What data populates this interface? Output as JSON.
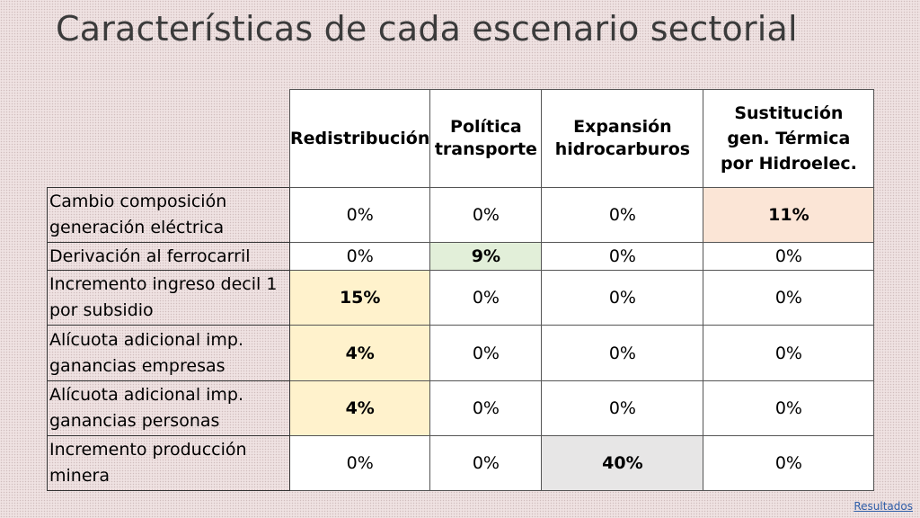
{
  "title": "Características de cada escenario sectorial",
  "columns": [
    "Redistribución",
    "Política transporte",
    "Expansión hidrocarburos",
    "Sustitución gen. Térmica por Hidroelec."
  ],
  "rows": [
    {
      "label": "Cambio composición generación eléctrica",
      "values": [
        "0%",
        "0%",
        "0%",
        "11%"
      ]
    },
    {
      "label": "Derivación al ferrocarril",
      "values": [
        "0%",
        "9%",
        "0%",
        "0%"
      ]
    },
    {
      "label": "Incremento ingreso decil 1 por subsidio",
      "values": [
        "15%",
        "0%",
        "0%",
        "0%"
      ]
    },
    {
      "label": "Alícuota adicional imp. ganancias empresas",
      "values": [
        "4%",
        "0%",
        "0%",
        "0%"
      ]
    },
    {
      "label": "Alícuota adicional imp. ganancias personas",
      "values": [
        "4%",
        "0%",
        "0%",
        "0%"
      ]
    },
    {
      "label": "Incremento producción minera",
      "values": [
        "0%",
        "0%",
        "40%",
        "0%"
      ]
    }
  ],
  "colors": {
    "redistribucion_text": "#7a5f00",
    "transporte_text": "#5b8a32",
    "sustitucion_text": "#c55a11",
    "highlight_yellow": "#fff2cc",
    "highlight_green": "#e2efd9",
    "highlight_peach": "#fbe5d6",
    "highlight_gray": "#e7e6e6"
  },
  "footer_link": "Resultados"
}
